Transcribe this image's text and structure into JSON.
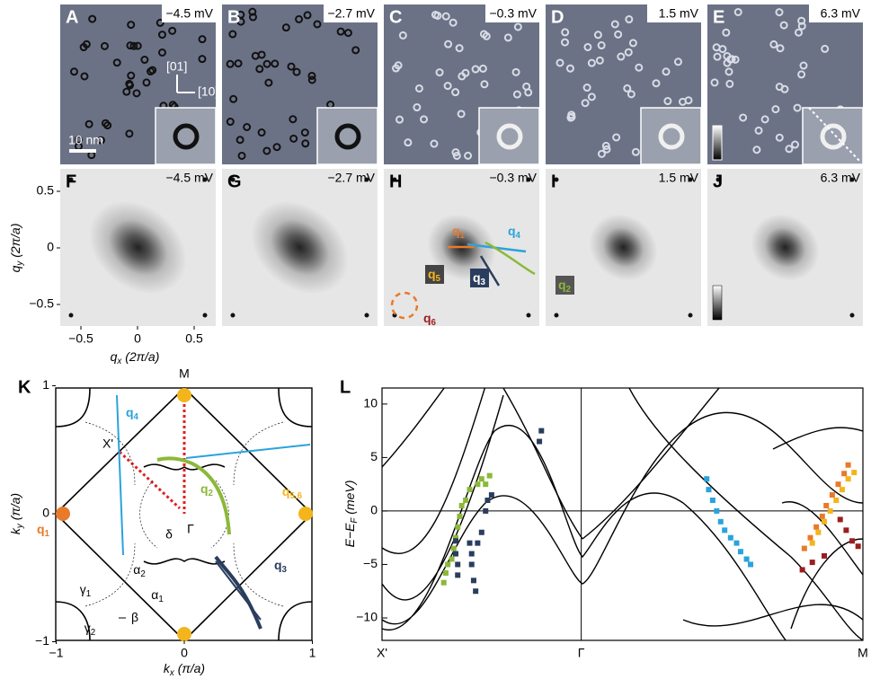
{
  "top_row": [
    {
      "letter": "A",
      "energy": "−4.5 mV"
    },
    {
      "letter": "B",
      "energy": "−2.7 mV"
    },
    {
      "letter": "C",
      "energy": "−0.3 mV"
    },
    {
      "letter": "D",
      "energy": "1.5 mV"
    },
    {
      "letter": "E",
      "energy": "6.3 mV"
    }
  ],
  "fft_row": [
    {
      "letter": "F",
      "energy": "−4.5 mV"
    },
    {
      "letter": "G",
      "energy": "−2.7 mV"
    },
    {
      "letter": "H",
      "energy": "−0.3 mV"
    },
    {
      "letter": "I",
      "energy": "1.5 mV"
    },
    {
      "letter": "J",
      "energy": "6.3 mV"
    }
  ],
  "panel_a": {
    "scale_bar": "10 nm",
    "dir_y": "[01]",
    "dir_x": "[10]"
  },
  "fft_axes": {
    "x_label": {
      "main": "q",
      "sub": "x",
      "unit": " (2π/a)"
    },
    "y_label": {
      "main": "q",
      "sub": "y",
      "unit": " (2π/a)"
    },
    "ticks": [
      {
        "value": -0.5,
        "label": "−0.5"
      },
      0,
      0.5
    ]
  },
  "panel_h": {
    "q_labels": [
      {
        "main": "q",
        "sub": "1"
      },
      {
        "main": "q",
        "sub": "2"
      },
      {
        "main": "q",
        "sub": "3"
      },
      {
        "main": "q",
        "sub": "4"
      },
      {
        "main": "q",
        "sub": "5"
      },
      {
        "main": "q",
        "sub": "6"
      }
    ]
  },
  "panel_k": {
    "letter": "K",
    "x_label": {
      "main": "k",
      "sub": "x",
      "unit": " (π/a)"
    },
    "y_label": {
      "main": "k",
      "sub": "y",
      "unit": " (π/a)"
    },
    "ticks": [
      {
        "value": -1,
        "label": "−1"
      },
      0,
      1
    ],
    "points": [
      "M",
      "X'",
      "Γ",
      "δ"
    ],
    "pockets": [
      {
        "main": "α",
        "sub": "2"
      },
      {
        "main": "α",
        "sub": "1"
      },
      {
        "main": "γ",
        "sub": "1"
      },
      {
        "main": "β",
        "sub": ""
      },
      {
        "main": "γ",
        "sub": "2"
      }
    ],
    "q_labels": [
      {
        "main": "q",
        "sub": "4"
      },
      {
        "main": "q",
        "sub": "2"
      },
      {
        "main": "q",
        "sub": "3"
      },
      {
        "main": "q",
        "sub": "1"
      },
      {
        "main": "q",
        "sub": "5,6"
      }
    ]
  },
  "chart_data": {
    "type": "scatter",
    "letter": "L",
    "y_label": {
      "main": "E−E",
      "sub": "F",
      "unit": " (meV)"
    },
    "xlim": [
      0,
      2.414
    ],
    "xticks": [
      {
        "value": 0,
        "label": "X'"
      },
      {
        "value": 1,
        "label": "Γ"
      },
      {
        "value": 2.414,
        "label": "M"
      }
    ],
    "ylim": [
      -12.1,
      11.5
    ],
    "yticks": [
      {
        "value": -10,
        "label": "−10"
      },
      {
        "value": -5,
        "label": "−5"
      },
      0,
      5,
      10
    ],
    "series": [
      {
        "color": "#8cb83a",
        "x": [
          0.31,
          0.32,
          0.33,
          0.35,
          0.36,
          0.37,
          0.38,
          0.39,
          0.4,
          0.42,
          0.44,
          0.48,
          0.5,
          0.52,
          0.54
        ],
        "values": [
          -6.7,
          -5.8,
          -5,
          -4.5,
          -3.5,
          -2.5,
          -1.5,
          -0.5,
          0.5,
          1,
          2,
          2.5,
          3,
          2.5,
          3.3
        ]
      },
      {
        "color": "#2a3d5e",
        "x": [
          0.37,
          0.37,
          0.38,
          0.38,
          0.44,
          0.45,
          0.45,
          0.46,
          0.47,
          0.48,
          0.5,
          0.52,
          0.53,
          0.55,
          0.79,
          0.8
        ],
        "values": [
          -2.8,
          -4,
          -5,
          -6,
          -3,
          -4,
          -5,
          -6.5,
          -7.5,
          -3,
          -2,
          0,
          1,
          1.5,
          6.5,
          7.5
        ]
      },
      {
        "color": "#2aa3dc",
        "x": [
          1.63,
          1.64,
          1.66,
          1.68,
          1.7,
          1.72,
          1.75,
          1.78,
          1.8,
          1.83,
          1.85
        ],
        "values": [
          3,
          2,
          1,
          0,
          -1,
          -1.8,
          -2.5,
          -3,
          -3.8,
          -4.5,
          -5
        ]
      },
      {
        "color": "#e87a2a",
        "x": [
          2.12,
          2.15,
          2.18,
          2.21,
          2.23,
          2.26,
          2.29,
          2.32,
          2.34
        ],
        "values": [
          -3.5,
          -2.5,
          -1.5,
          -0.5,
          0.5,
          1.5,
          2.5,
          3.5,
          4.3
        ]
      },
      {
        "color": "#f3b51b",
        "x": [
          2.16,
          2.19,
          2.22,
          2.25,
          2.28,
          2.31,
          2.34,
          2.37
        ],
        "values": [
          -3,
          -2,
          -1,
          0,
          1,
          2,
          3,
          3.6
        ]
      },
      {
        "color": "#9b1e1e",
        "x": [
          2.11,
          2.16,
          2.22,
          2.3,
          2.33,
          2.36,
          2.39
        ],
        "values": [
          -5.5,
          -4.8,
          -4.2,
          -0.8,
          -1.8,
          -2.8,
          -3.3
        ]
      }
    ]
  }
}
